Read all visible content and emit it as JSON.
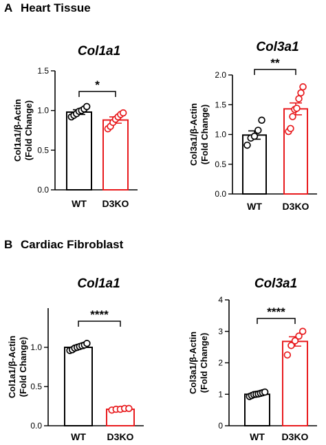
{
  "sections": [
    {
      "letter": "A",
      "title": "Heart Tissue"
    },
    {
      "letter": "B",
      "title": "Cardiac Fibroblast"
    }
  ],
  "colors": {
    "wt": "#000000",
    "d3ko": "#e8191c"
  },
  "chart_data": [
    {
      "type": "bar",
      "title": "Col1a1",
      "ylabel": [
        "Col1a1/β-Actin",
        "(Fold Change)"
      ],
      "categories": [
        "WT",
        "D3KO"
      ],
      "values": [
        0.98,
        0.88
      ],
      "errors": [
        0.03,
        0.04
      ],
      "points": [
        [
          0.92,
          0.94,
          0.96,
          0.99,
          1.0,
          1.02,
          1.05
        ],
        [
          0.77,
          0.8,
          0.85,
          0.89,
          0.92,
          0.95,
          0.97
        ]
      ],
      "ylim": [
        0,
        1.5
      ],
      "yticks": [
        0.0,
        0.5,
        1.0,
        1.5
      ],
      "tick_labels": [
        "0.0",
        "0.5",
        "1.0",
        "1.5"
      ],
      "significance": "*"
    },
    {
      "type": "bar",
      "title": "Col3a1",
      "ylabel": [
        "Col3a1/β-Actin",
        "(Fold Change)"
      ],
      "categories": [
        "WT",
        "D3KO"
      ],
      "values": [
        0.99,
        1.43
      ],
      "errors": [
        0.07,
        0.1
      ],
      "points": [
        [
          0.82,
          0.94,
          0.97,
          1.07,
          1.24
        ],
        [
          1.05,
          1.1,
          1.3,
          1.42,
          1.44,
          1.6,
          1.7,
          1.8
        ]
      ],
      "ylim": [
        0,
        2.0
      ],
      "yticks": [
        0.0,
        0.5,
        1.0,
        1.5,
        2.0
      ],
      "tick_labels": [
        "0.0",
        "0.5",
        "1.0",
        "1.5",
        "2.0"
      ],
      "significance": "**"
    },
    {
      "type": "bar",
      "title": "Col1a1",
      "ylabel": [
        "Col1a1/β-Actin",
        "(Fold Change)"
      ],
      "categories": [
        "WT",
        "D3KO"
      ],
      "values": [
        1.0,
        0.21
      ],
      "errors": [
        0.015,
        0.01
      ],
      "points": [
        [
          0.96,
          0.97,
          0.99,
          1.0,
          1.01,
          1.02,
          1.03,
          1.05
        ],
        [
          0.2,
          0.21,
          0.21,
          0.22,
          0.22
        ]
      ],
      "ylim": [
        0,
        1.5
      ],
      "yticks": [
        0.0,
        0.5,
        1.0
      ],
      "tick_labels": [
        "0.0",
        "0.5",
        "1.0"
      ],
      "significance": "****"
    },
    {
      "type": "bar",
      "title": "Col3a1",
      "ylabel": [
        "Col3a1/β-Actin",
        "(Fold Change)"
      ],
      "categories": [
        "WT",
        "D3KO"
      ],
      "values": [
        1.0,
        2.68
      ],
      "errors": [
        0.03,
        0.15
      ],
      "points": [
        [
          0.93,
          0.96,
          0.99,
          1.0,
          1.01,
          1.03,
          1.05,
          1.07
        ],
        [
          2.25,
          2.55,
          2.7,
          2.85,
          3.0
        ]
      ],
      "ylim": [
        0,
        4
      ],
      "yticks": [
        0,
        1,
        2,
        3,
        4
      ],
      "tick_labels": [
        "0",
        "1",
        "2",
        "3",
        "4"
      ],
      "significance": "****"
    }
  ]
}
